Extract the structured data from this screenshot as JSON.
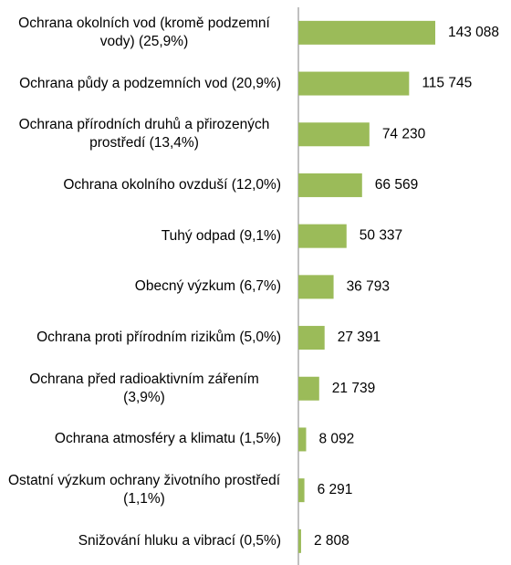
{
  "chart_data": {
    "type": "barh",
    "categories": [
      "Ochrana okolních vod (kromě podzemní vody) (25,9%)",
      "Ochrana půdy a podzemních vod (20,9%)",
      "Ochrana přírodních druhů a přirozených prostředí (13,4%)",
      "Ochrana okolního ovzduší (12,0%)",
      "Tuhý odpad (9,1%)",
      "Obecný výzkum (6,7%)",
      "Ochrana proti přírodním rizikům (5,0%)",
      "Ochrana před radioaktivním zářením (3,9%)",
      "Ochrana atmosféry a klimatu (1,5%)",
      "Ostatní výzkum ochrany životního prostředí (1,1%)",
      "Snižování hluku a vibrací (0,5%)"
    ],
    "values": [
      143088,
      115745,
      74230,
      66569,
      50337,
      36793,
      27391,
      21739,
      8092,
      6291,
      2808
    ],
    "value_labels": [
      "143 088",
      "115 745",
      "74 230",
      "66 569",
      "50 337",
      "36 793",
      "27 391",
      "21 739",
      "8 092",
      "6 291",
      "2 808"
    ],
    "color": "#9bbb59"
  }
}
